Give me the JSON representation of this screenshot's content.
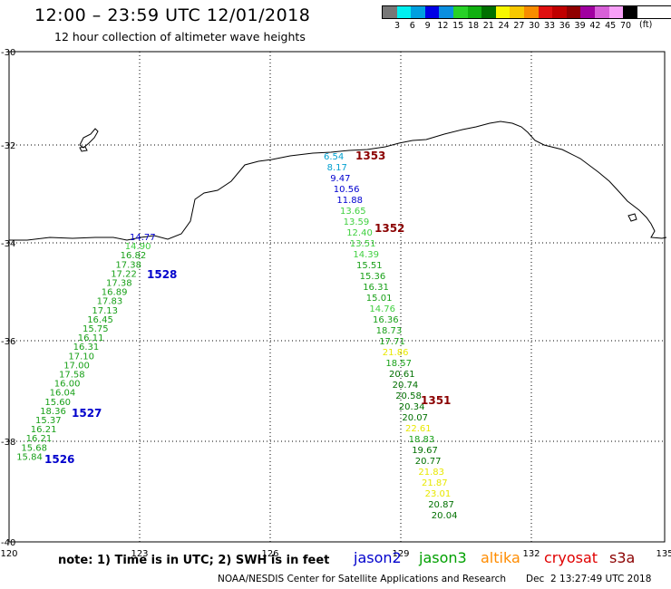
{
  "header": {
    "title": "12:00 – 23:59 UTC 12/01/2018",
    "subtitle": "12 hour collection of altimeter wave heights"
  },
  "color_scale": {
    "colors": [
      "#777777",
      "#00f0f0",
      "#00a0e0",
      "#0000e6",
      "#0a8fe0",
      "#28d228",
      "#10b010",
      "#007000",
      "#f8f800",
      "#f8c800",
      "#f88c00",
      "#e01010",
      "#c00000",
      "#900000",
      "#a000a0",
      "#d860d8",
      "#f8a0f8",
      "#000000"
    ],
    "labels": [
      "3",
      "6",
      "9",
      "12",
      "15",
      "18",
      "21",
      "24",
      "27",
      "30",
      "33",
      "36",
      "39",
      "42",
      "45",
      "70"
    ],
    "unit": "(ft)"
  },
  "map": {
    "lon_ticks": [
      "120",
      "123",
      "126",
      "129",
      "132",
      "135"
    ],
    "lat_ticks": [
      "-30",
      "-32",
      "-34",
      "-36",
      "-38",
      "-40"
    ]
  },
  "passes": [
    {
      "id": "1353",
      "color": "#8b0000"
    },
    {
      "id": "1352",
      "color": "#8b0000"
    },
    {
      "id": "1351",
      "color": "#8b0000"
    },
    {
      "id": "1528",
      "color": "#0000cc"
    },
    {
      "id": "1527",
      "color": "#0000cc"
    },
    {
      "id": "1526",
      "color": "#0000cc"
    }
  ],
  "track_east": [
    {
      "v": "6.54",
      "c": "#00a0d0"
    },
    {
      "v": "8.17",
      "c": "#00a0d0"
    },
    {
      "v": "9.47",
      "c": "#0000d0"
    },
    {
      "v": "10.56",
      "c": "#0000d0"
    },
    {
      "v": "11.88",
      "c": "#0000d0"
    },
    {
      "v": "13.65",
      "c": "#40d040"
    },
    {
      "v": "13.59",
      "c": "#40d040"
    },
    {
      "v": "12.40",
      "c": "#40d040"
    },
    {
      "v": "13.51",
      "c": "#40d040"
    },
    {
      "v": "14.39",
      "c": "#40d040"
    },
    {
      "v": "15.51",
      "c": "#18a018"
    },
    {
      "v": "15.36",
      "c": "#18a018"
    },
    {
      "v": "16.31",
      "c": "#18a018"
    },
    {
      "v": "15.01",
      "c": "#18a018"
    },
    {
      "v": "14.76",
      "c": "#40d040"
    },
    {
      "v": "16.36",
      "c": "#18a018"
    },
    {
      "v": "18.73",
      "c": "#18a018"
    },
    {
      "v": "17.71",
      "c": "#18a018"
    },
    {
      "v": "21.86",
      "c": "#e8e800"
    },
    {
      "v": "18.57",
      "c": "#18a018"
    },
    {
      "v": "20.61",
      "c": "#007000"
    },
    {
      "v": "20.74",
      "c": "#007000"
    },
    {
      "v": "20.58",
      "c": "#007000"
    },
    {
      "v": "20.34",
      "c": "#007000"
    },
    {
      "v": "20.07",
      "c": "#007000"
    },
    {
      "v": "22.61",
      "c": "#e8e800"
    },
    {
      "v": "18.83",
      "c": "#18a018"
    },
    {
      "v": "19.67",
      "c": "#007000"
    },
    {
      "v": "20.77",
      "c": "#007000"
    },
    {
      "v": "21.83",
      "c": "#e8e800"
    },
    {
      "v": "21.87",
      "c": "#e8e800"
    },
    {
      "v": "23.01",
      "c": "#e8e800"
    },
    {
      "v": "20.87",
      "c": "#007000"
    },
    {
      "v": "20.04",
      "c": "#007000"
    }
  ],
  "track_west": [
    {
      "v": "14.77",
      "c": "#0000d0"
    },
    {
      "v": "14.90",
      "c": "#40d040"
    },
    {
      "v": "16.82",
      "c": "#18a018"
    },
    {
      "v": "17.38",
      "c": "#18a018"
    },
    {
      "v": "17.22",
      "c": "#18a018"
    },
    {
      "v": "17.38",
      "c": "#18a018"
    },
    {
      "v": "16.89",
      "c": "#18a018"
    },
    {
      "v": "17.83",
      "c": "#18a018"
    },
    {
      "v": "17.13",
      "c": "#18a018"
    },
    {
      "v": "16.45",
      "c": "#18a018"
    },
    {
      "v": "15.75",
      "c": "#18a018"
    },
    {
      "v": "16.11",
      "c": "#18a018"
    },
    {
      "v": "16.31",
      "c": "#18a018"
    },
    {
      "v": "17.10",
      "c": "#18a018"
    },
    {
      "v": "17.00",
      "c": "#18a018"
    },
    {
      "v": "17.58",
      "c": "#18a018"
    },
    {
      "v": "16.00",
      "c": "#18a018"
    },
    {
      "v": "16.04",
      "c": "#18a018"
    },
    {
      "v": "15.60",
      "c": "#18a018"
    },
    {
      "v": "18.36",
      "c": "#18a018"
    },
    {
      "v": "15.37",
      "c": "#18a018"
    },
    {
      "v": "16.21",
      "c": "#18a018"
    },
    {
      "v": "16.21",
      "c": "#18a018"
    },
    {
      "v": "15.68",
      "c": "#18a018"
    },
    {
      "v": "15.84",
      "c": "#18a018"
    }
  ],
  "footer": {
    "note": "note: 1) Time is in UTC; 2) SWH is in feet",
    "satellites": [
      {
        "name": "jason2",
        "color": "#0000cc"
      },
      {
        "name": "jason3",
        "color": "#00a000"
      },
      {
        "name": "altika",
        "color": "#ff8c00"
      },
      {
        "name": "cryosat",
        "color": "#e00000"
      },
      {
        "name": "s3a",
        "color": "#8b0000"
      }
    ],
    "credit": "NOAA/NESDIS Center for Satellite Applications and Research",
    "timestamp": "Dec  2 13:27:49 UTC 2018"
  }
}
